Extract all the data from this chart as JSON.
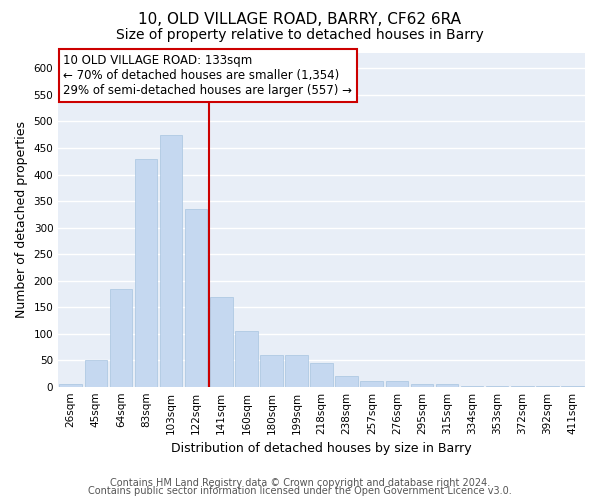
{
  "title1": "10, OLD VILLAGE ROAD, BARRY, CF62 6RA",
  "title2": "Size of property relative to detached houses in Barry",
  "xlabel": "Distribution of detached houses by size in Barry",
  "ylabel": "Number of detached properties",
  "categories": [
    "26sqm",
    "45sqm",
    "64sqm",
    "83sqm",
    "103sqm",
    "122sqm",
    "141sqm",
    "160sqm",
    "180sqm",
    "199sqm",
    "218sqm",
    "238sqm",
    "257sqm",
    "276sqm",
    "295sqm",
    "315sqm",
    "334sqm",
    "353sqm",
    "372sqm",
    "392sqm",
    "411sqm"
  ],
  "values": [
    5,
    50,
    185,
    430,
    475,
    335,
    170,
    105,
    60,
    60,
    45,
    20,
    10,
    10,
    5,
    5,
    2,
    2,
    2,
    1,
    2
  ],
  "bar_color": "#c5d8f0",
  "bar_edge_color": "#a8c4e0",
  "vline_x": 5.5,
  "vline_color": "#cc0000",
  "ann_line1": "10 OLD VILLAGE ROAD: 133sqm",
  "ann_line2": "← 70% of detached houses are smaller (1,354)",
  "ann_line3": "29% of semi-detached houses are larger (557) →",
  "ann_box_color": "#cc0000",
  "ylim": [
    0,
    630
  ],
  "yticks": [
    0,
    50,
    100,
    150,
    200,
    250,
    300,
    350,
    400,
    450,
    500,
    550,
    600
  ],
  "bg_color": "#e8eef7",
  "grid_color": "#ffffff",
  "footer1": "Contains HM Land Registry data © Crown copyright and database right 2024.",
  "footer2": "Contains public sector information licensed under the Open Government Licence v3.0.",
  "title1_fontsize": 11,
  "title2_fontsize": 10,
  "xlabel_fontsize": 9,
  "ylabel_fontsize": 9,
  "tick_fontsize": 7.5,
  "ann_fontsize": 8.5,
  "footer_fontsize": 7
}
